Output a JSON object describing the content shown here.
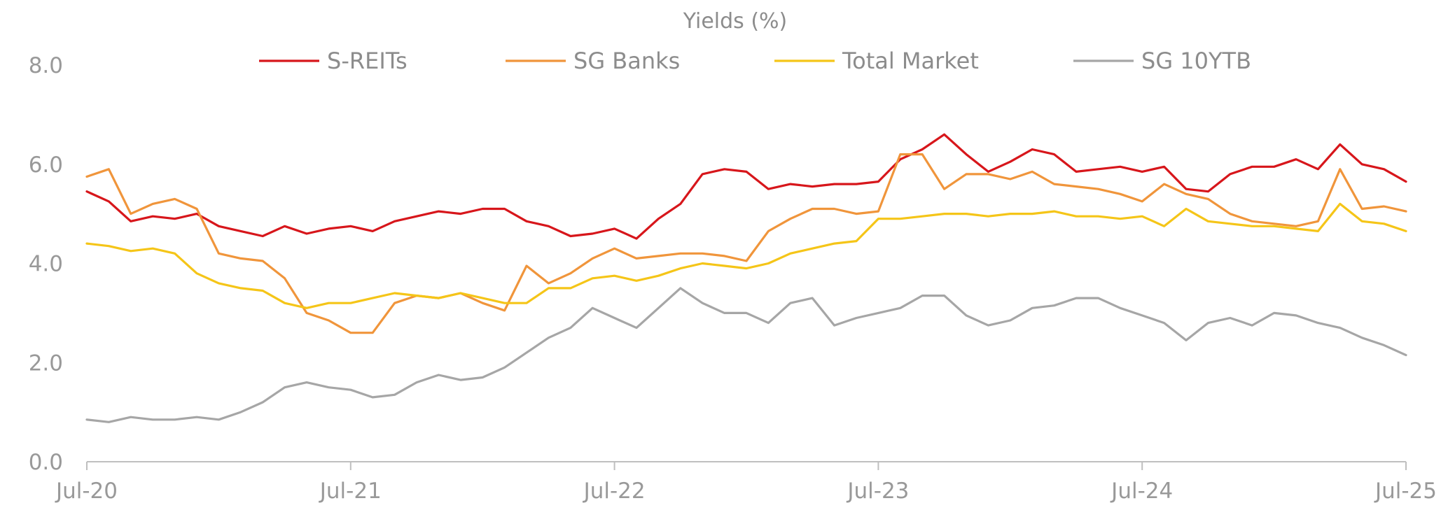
{
  "chart_data": {
    "type": "line",
    "title": "Yields (%)",
    "xlabel": "",
    "ylabel": "",
    "ylim": [
      0,
      8
    ],
    "xlim": [
      "2020-07",
      "2025-07"
    ],
    "y_ticks": [
      "0.0",
      "2.0",
      "4.0",
      "6.0",
      "8.0"
    ],
    "x_ticks": [
      {
        "date": "2020-07",
        "label": "Jul-20"
      },
      {
        "date": "2021-07",
        "label": "Jul-21"
      },
      {
        "date": "2022-07",
        "label": "Jul-22"
      },
      {
        "date": "2023-07",
        "label": "Jul-23"
      },
      {
        "date": "2024-07",
        "label": "Jul-24"
      },
      {
        "date": "2025-07",
        "label": "Jul-25"
      }
    ],
    "grid": false,
    "legend_position": "top",
    "series": [
      {
        "name": "S-REITs",
        "color": "#d7161b",
        "x": [
          "2020-07",
          "2020-08",
          "2020-09",
          "2020-10",
          "2020-11",
          "2020-12",
          "2021-01",
          "2021-02",
          "2021-03",
          "2021-04",
          "2021-05",
          "2021-06",
          "2021-07",
          "2021-08",
          "2021-09",
          "2021-10",
          "2021-11",
          "2021-12",
          "2022-01",
          "2022-02",
          "2022-03",
          "2022-04",
          "2022-05",
          "2022-06",
          "2022-07",
          "2022-08",
          "2022-09",
          "2022-10",
          "2022-11",
          "2022-12",
          "2023-01",
          "2023-02",
          "2023-03",
          "2023-04",
          "2023-05",
          "2023-06",
          "2023-07",
          "2023-08",
          "2023-09",
          "2023-10",
          "2023-11",
          "2023-12",
          "2024-01",
          "2024-02",
          "2024-03",
          "2024-04",
          "2024-05",
          "2024-06",
          "2024-07",
          "2024-08",
          "2024-09",
          "2024-10",
          "2024-11",
          "2024-12",
          "2025-01",
          "2025-02",
          "2025-03",
          "2025-04",
          "2025-05",
          "2025-06",
          "2025-07"
        ],
        "values": [
          5.45,
          5.25,
          4.85,
          4.95,
          4.9,
          5.0,
          4.75,
          4.65,
          4.55,
          4.75,
          4.6,
          4.7,
          4.75,
          4.65,
          4.85,
          4.95,
          5.05,
          5.0,
          5.1,
          5.1,
          4.85,
          4.75,
          4.55,
          4.6,
          4.7,
          4.5,
          4.9,
          5.2,
          5.8,
          5.9,
          5.85,
          5.5,
          5.6,
          5.55,
          5.6,
          5.6,
          5.65,
          6.1,
          6.3,
          6.6,
          6.2,
          5.85,
          6.05,
          6.3,
          6.2,
          5.85,
          5.9,
          5.95,
          5.85,
          5.95,
          5.5,
          5.45,
          5.8,
          5.95,
          5.95,
          6.1,
          5.9,
          6.4,
          6.0,
          5.9,
          5.65
        ]
      },
      {
        "name": "SG Banks",
        "color": "#f0953b",
        "x": [
          "2020-07",
          "2020-08",
          "2020-09",
          "2020-10",
          "2020-11",
          "2020-12",
          "2021-01",
          "2021-02",
          "2021-03",
          "2021-04",
          "2021-05",
          "2021-06",
          "2021-07",
          "2021-08",
          "2021-09",
          "2021-10",
          "2021-11",
          "2021-12",
          "2022-01",
          "2022-02",
          "2022-03",
          "2022-04",
          "2022-05",
          "2022-06",
          "2022-07",
          "2022-08",
          "2022-09",
          "2022-10",
          "2022-11",
          "2022-12",
          "2023-01",
          "2023-02",
          "2023-03",
          "2023-04",
          "2023-05",
          "2023-06",
          "2023-07",
          "2023-08",
          "2023-09",
          "2023-10",
          "2023-11",
          "2023-12",
          "2024-01",
          "2024-02",
          "2024-03",
          "2024-04",
          "2024-05",
          "2024-06",
          "2024-07",
          "2024-08",
          "2024-09",
          "2024-10",
          "2024-11",
          "2024-12",
          "2025-01",
          "2025-02",
          "2025-03",
          "2025-04",
          "2025-05",
          "2025-06",
          "2025-07"
        ],
        "values": [
          5.75,
          5.9,
          5.0,
          5.2,
          5.3,
          5.1,
          4.2,
          4.1,
          4.05,
          3.7,
          3.0,
          2.85,
          2.6,
          2.6,
          3.2,
          3.35,
          3.3,
          3.4,
          3.2,
          3.05,
          3.95,
          3.6,
          3.8,
          4.1,
          4.3,
          4.1,
          4.15,
          4.2,
          4.2,
          4.15,
          4.05,
          4.65,
          4.9,
          5.1,
          5.1,
          5.0,
          5.05,
          6.2,
          6.2,
          5.5,
          5.8,
          5.8,
          5.7,
          5.85,
          5.6,
          5.55,
          5.5,
          5.4,
          5.25,
          5.6,
          5.4,
          5.3,
          5.0,
          4.85,
          4.8,
          4.75,
          4.85,
          5.9,
          5.1,
          5.15,
          5.05
        ]
      },
      {
        "name": "Total Market",
        "color": "#f5c518",
        "x": [
          "2020-07",
          "2020-08",
          "2020-09",
          "2020-10",
          "2020-11",
          "2020-12",
          "2021-01",
          "2021-02",
          "2021-03",
          "2021-04",
          "2021-05",
          "2021-06",
          "2021-07",
          "2021-08",
          "2021-09",
          "2021-10",
          "2021-11",
          "2021-12",
          "2022-01",
          "2022-02",
          "2022-03",
          "2022-04",
          "2022-05",
          "2022-06",
          "2022-07",
          "2022-08",
          "2022-09",
          "2022-10",
          "2022-11",
          "2022-12",
          "2023-01",
          "2023-02",
          "2023-03",
          "2023-04",
          "2023-05",
          "2023-06",
          "2023-07",
          "2023-08",
          "2023-09",
          "2023-10",
          "2023-11",
          "2023-12",
          "2024-01",
          "2024-02",
          "2024-03",
          "2024-04",
          "2024-05",
          "2024-06",
          "2024-07",
          "2024-08",
          "2024-09",
          "2024-10",
          "2024-11",
          "2024-12",
          "2025-01",
          "2025-02",
          "2025-03",
          "2025-04",
          "2025-05",
          "2025-06",
          "2025-07"
        ],
        "values": [
          4.4,
          4.35,
          4.25,
          4.3,
          4.2,
          3.8,
          3.6,
          3.5,
          3.45,
          3.2,
          3.1,
          3.2,
          3.2,
          3.3,
          3.4,
          3.35,
          3.3,
          3.4,
          3.3,
          3.2,
          3.2,
          3.5,
          3.5,
          3.7,
          3.75,
          3.65,
          3.75,
          3.9,
          4.0,
          3.95,
          3.9,
          4.0,
          4.2,
          4.3,
          4.4,
          4.45,
          4.9,
          4.9,
          4.95,
          5.0,
          5.0,
          4.95,
          5.0,
          5.0,
          5.05,
          4.95,
          4.95,
          4.9,
          4.95,
          4.75,
          5.1,
          4.85,
          4.8,
          4.75,
          4.75,
          4.7,
          4.65,
          5.2,
          4.85,
          4.8,
          4.65
        ]
      },
      {
        "name": "SG 10YTB",
        "color": "#a6a6a6",
        "x": [
          "2020-07",
          "2020-08",
          "2020-09",
          "2020-10",
          "2020-11",
          "2020-12",
          "2021-01",
          "2021-02",
          "2021-03",
          "2021-04",
          "2021-05",
          "2021-06",
          "2021-07",
          "2021-08",
          "2021-09",
          "2021-10",
          "2021-11",
          "2021-12",
          "2022-01",
          "2022-02",
          "2022-03",
          "2022-04",
          "2022-05",
          "2022-06",
          "2022-07",
          "2022-08",
          "2022-09",
          "2022-10",
          "2022-11",
          "2022-12",
          "2023-01",
          "2023-02",
          "2023-03",
          "2023-04",
          "2023-05",
          "2023-06",
          "2023-07",
          "2023-08",
          "2023-09",
          "2023-10",
          "2023-11",
          "2023-12",
          "2024-01",
          "2024-02",
          "2024-03",
          "2024-04",
          "2024-05",
          "2024-06",
          "2024-07",
          "2024-08",
          "2024-09",
          "2024-10",
          "2024-11",
          "2024-12",
          "2025-01",
          "2025-02",
          "2025-03",
          "2025-04",
          "2025-05",
          "2025-06",
          "2025-07"
        ],
        "values": [
          0.85,
          0.8,
          0.9,
          0.85,
          0.85,
          0.9,
          0.85,
          1.0,
          1.2,
          1.5,
          1.6,
          1.5,
          1.45,
          1.3,
          1.35,
          1.6,
          1.75,
          1.65,
          1.7,
          1.9,
          2.2,
          2.5,
          2.7,
          3.1,
          2.9,
          2.7,
          3.1,
          3.5,
          3.2,
          3.0,
          3.0,
          2.8,
          3.2,
          3.3,
          2.75,
          2.9,
          3.0,
          3.1,
          3.35,
          3.35,
          2.95,
          2.75,
          2.85,
          3.1,
          3.15,
          3.3,
          3.3,
          3.1,
          2.95,
          2.8,
          2.45,
          2.8,
          2.9,
          2.75,
          3.0,
          2.95,
          2.8,
          2.7,
          2.5,
          2.35,
          2.15
        ]
      }
    ]
  }
}
